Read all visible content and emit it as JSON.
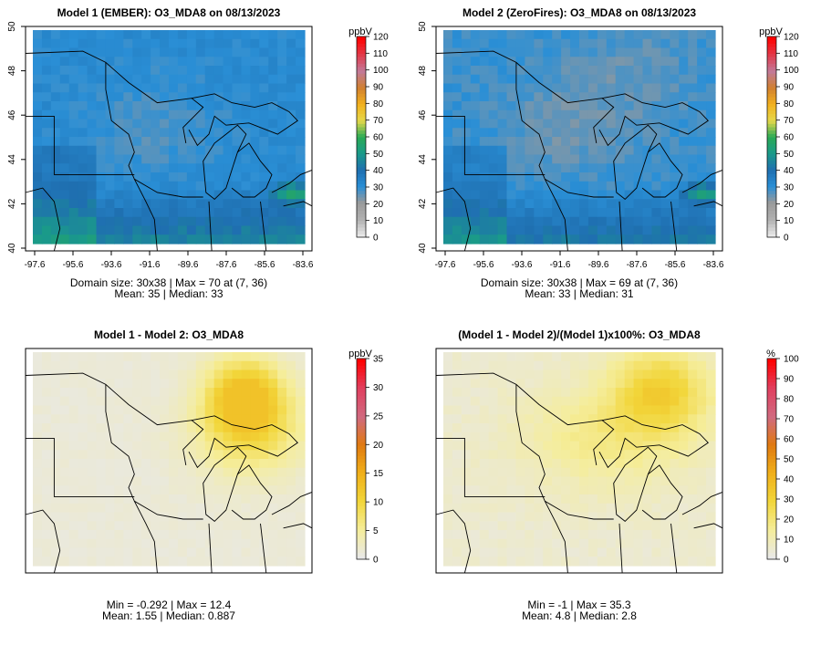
{
  "panels": [
    {
      "id": "m1",
      "title": "Model 1 (EMBER): O3_MDA8 on 08/13/2023",
      "stats_line1": "Domain size: 30x38 | Max = 70 at (7, 36)",
      "stats_line2": "Mean: 35 |  Median: 33",
      "show_axes": true,
      "field": "ozone",
      "colorbar": {
        "unit": "ppbV",
        "ticks": [
          "0",
          "10",
          "20",
          "30",
          "40",
          "50",
          "60",
          "70",
          "80",
          "90",
          "100",
          "110",
          "120"
        ]
      }
    },
    {
      "id": "m2",
      "title": "Model 2 (ZeroFires): O3_MDA8 on 08/13/2023",
      "stats_line1": "Domain size: 30x38 | Max = 69 at (7, 36)",
      "stats_line2": "Mean: 33 |  Median: 31",
      "show_axes": true,
      "field": "ozone",
      "colorbar": {
        "unit": "ppbV",
        "ticks": [
          "0",
          "10",
          "20",
          "30",
          "40",
          "50",
          "60",
          "70",
          "80",
          "90",
          "100",
          "110",
          "120"
        ]
      }
    },
    {
      "id": "diff",
      "title": "Model 1 - Model 2: O3_MDA8",
      "stats_line1": "Min = -0.292 | Max = 12.4",
      "stats_line2": "Mean: 1.55 |  Median: 0.887",
      "show_axes": false,
      "field": "diff",
      "colorbar": {
        "unit": "ppbV",
        "ticks": [
          "0",
          "5",
          "10",
          "15",
          "20",
          "25",
          "30",
          "35"
        ]
      }
    },
    {
      "id": "pct",
      "title": "(Model 1 - Model 2)/(Model 1)x100%: O3_MDA8",
      "stats_line1": "Min = -1 | Max = 35.3",
      "stats_line2": "Mean: 4.8 |  Median: 2.8",
      "show_axes": false,
      "field": "pct",
      "colorbar": {
        "unit": "%",
        "ticks": [
          "0",
          "10",
          "20",
          "30",
          "40",
          "50",
          "60",
          "70",
          "80",
          "90",
          "100"
        ]
      }
    }
  ],
  "x_ticks": [
    "-97.6",
    "-95.6",
    "-93.6",
    "-91.6",
    "-89.6",
    "-87.6",
    "-85.6",
    "-83.6"
  ],
  "y_ticks": [
    "40",
    "42",
    "44",
    "46",
    "48",
    "50"
  ],
  "colors": {
    "ozone": [
      "#e8e8e8",
      "#b0b0b0",
      "#9a9a9a",
      "#2a8fd6",
      "#1f6fb0",
      "#1a9a8a",
      "#2aaa55",
      "#e6d84a",
      "#f2b01e",
      "#d08030",
      "#c27a9a",
      "#e23a4a",
      "#ff0000"
    ],
    "diff": [
      "#e8e8e8",
      "#f5ed9a",
      "#f2d63a",
      "#f0b01a",
      "#e07a10",
      "#d06a80",
      "#e04060",
      "#ff0000"
    ],
    "pct": [
      "#e8e8e8",
      "#f5ed9a",
      "#f2d63a",
      "#f0b01a",
      "#e07a10",
      "#d06a80",
      "#e04060",
      "#ff0000"
    ]
  }
}
